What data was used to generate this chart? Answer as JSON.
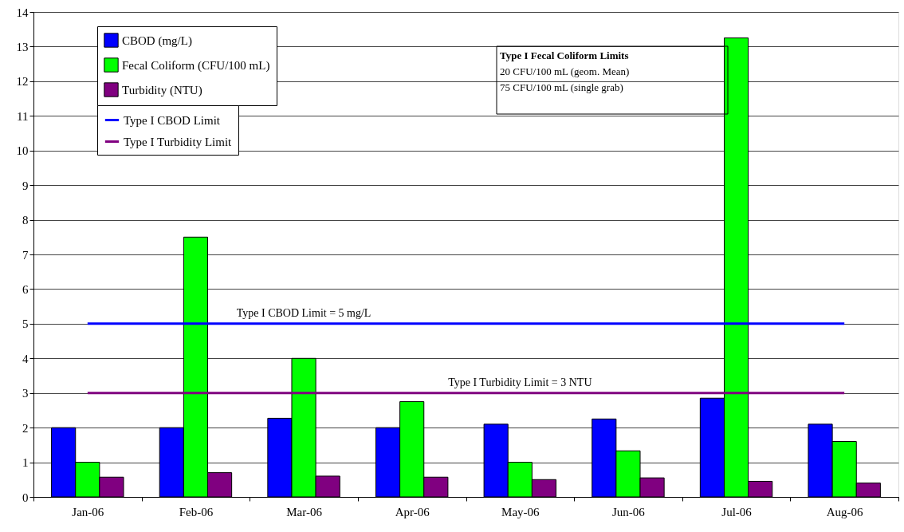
{
  "chart_data": {
    "type": "bar",
    "categories": [
      "Jan-06",
      "Feb-06",
      "Mar-06",
      "Apr-06",
      "May-06",
      "Jun-06",
      "Jul-06",
      "Aug-06"
    ],
    "series": [
      {
        "name": "CBOD (mg/L)",
        "color": "#0000ff",
        "values": [
          2,
          2,
          2.27,
          2,
          2.1,
          2.25,
          2.85,
          2.1
        ]
      },
      {
        "name": "Fecal Coliform (CFU/100 mL)",
        "color": "#00ff00",
        "values": [
          1,
          7.5,
          4,
          2.75,
          1,
          1.33,
          13.25,
          1.6
        ]
      },
      {
        "name": "Turbidity (NTU)",
        "color": "#800080",
        "values": [
          0.57,
          0.7,
          0.6,
          0.57,
          0.5,
          0.55,
          0.45,
          0.4
        ]
      },
      {
        "name": "Type I CBOD Limit",
        "type": "line",
        "color": "#0000ff",
        "values": [
          5,
          5,
          5,
          5,
          5,
          5,
          5,
          5
        ]
      },
      {
        "name": "Type I Turbidity Limit",
        "type": "line",
        "color": "#800080",
        "values": [
          3,
          3,
          3,
          3,
          3,
          3,
          3,
          3
        ]
      }
    ],
    "ylim": [
      0,
      14
    ],
    "yticks": [
      0,
      1,
      2,
      3,
      4,
      5,
      6,
      7,
      8,
      9,
      10,
      11,
      12,
      13,
      14
    ],
    "grid": "y",
    "legend": "top left",
    "annotations": [
      {
        "text": "Type I CBOD Limit = 5 mg/L",
        "x": "Mar-06",
        "y": 5
      },
      {
        "text": "Type I Turbidity Limit = 3 NTU",
        "x": "May-06",
        "y": 3
      },
      "Type I Fecal Coliform Limits",
      "20 CFU/100 mL (geom. Mean)",
      "75 CFU/100 mL (single grab)"
    ]
  }
}
